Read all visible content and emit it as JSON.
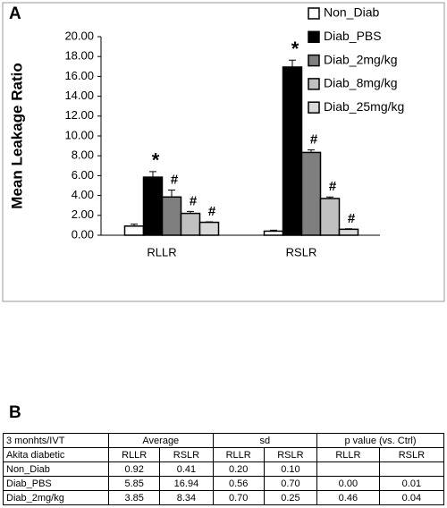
{
  "chart_data": {
    "type": "bar",
    "panel_label": "A",
    "ylabel": "Mean Leakage Ratio",
    "categories": [
      "RLLR",
      "RSLR"
    ],
    "series": [
      {
        "name": "Non_Diab",
        "color": "#ffffff",
        "values": [
          0.92,
          0.41
        ],
        "errors": [
          0.2,
          0.1
        ]
      },
      {
        "name": "Diab_PBS",
        "color": "#000000",
        "values": [
          5.85,
          16.94
        ],
        "errors": [
          0.56,
          0.7
        ],
        "markers": [
          "*",
          "*"
        ]
      },
      {
        "name": "Diab_2mg/kg",
        "color": "#7f7f7f",
        "values": [
          3.85,
          8.34
        ],
        "errors": [
          0.7,
          0.25
        ],
        "markers": [
          "#",
          "#"
        ]
      },
      {
        "name": "Diab_8mg/kg",
        "color": "#c0c0c0",
        "values": [
          2.2,
          3.7
        ],
        "errors": [
          0.2,
          0.15
        ],
        "markers": [
          "#",
          "#"
        ]
      },
      {
        "name": "Diab_25mg/kg",
        "color": "#d9d9d9",
        "values": [
          1.3,
          0.6
        ],
        "errors": [
          0.05,
          0.05
        ],
        "markers": [
          "#",
          "#"
        ]
      }
    ],
    "ylim": [
      0,
      20
    ],
    "yticks": [
      {
        "value": 0,
        "label": "0.00"
      },
      {
        "value": 2,
        "label": "2.00"
      },
      {
        "value": 4,
        "label": "4.00"
      },
      {
        "value": 6,
        "label": "6.00"
      },
      {
        "value": 8,
        "label": "8.00"
      },
      {
        "value": 10,
        "label": "10.00"
      },
      {
        "value": 12,
        "label": "12.00"
      },
      {
        "value": 14,
        "label": "14.00"
      },
      {
        "value": 16,
        "label": "16.00"
      },
      {
        "value": 18,
        "label": "18.00"
      },
      {
        "value": 20,
        "label": "20.00"
      }
    ],
    "grid": false
  },
  "table": {
    "panel_label": "B",
    "header": [
      "3 monhts/IVT",
      "Average",
      "sd",
      "p value (vs. Ctrl)"
    ],
    "subheader": [
      "Akita diabetic",
      "RLLR",
      "RSLR",
      "RLLR",
      "RSLR",
      "RLLR",
      "RSLR"
    ],
    "rows": [
      [
        "Non_Diab",
        "0.92",
        "0.41",
        "0.20",
        "0.10"
      ],
      [
        "Diab_PBS",
        "5.85",
        "16.94",
        "0.56",
        "0.70",
        "0.00",
        "0.01"
      ],
      [
        "Diab_2mg/kg",
        "3.85",
        "8.34",
        "0.70",
        "0.25",
        "0.46",
        "0.04"
      ]
    ]
  }
}
